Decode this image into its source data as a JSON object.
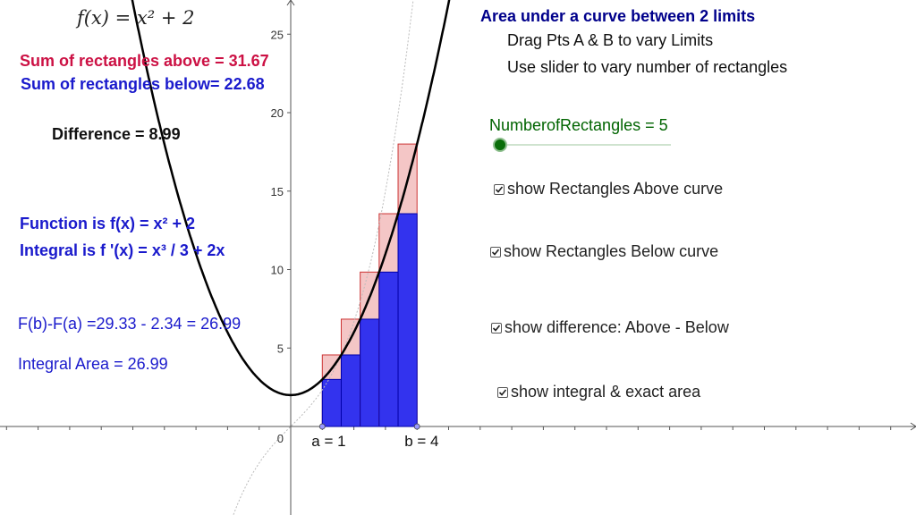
{
  "function_label": "f(x) = x² + 2",
  "colors": {
    "above_fill": "#f4c6c6",
    "above_stroke": "#cc3333",
    "below_fill": "#3333ee",
    "below_stroke": "#0000aa",
    "slider": "#006400",
    "title": "#00008b"
  },
  "stats": {
    "sum_above": "Sum of rectangles above = 31.67",
    "sum_below": "Sum of rectangles below= 22.68",
    "difference": "Difference = 8.99",
    "function_text": "Function is f(x) = x² + 2",
    "integral_text": "Integral is f '(x) = x³ / 3 + 2x",
    "fb_fa": "F(b)-F(a) =29.33 - 2.34 = 26.99",
    "integral_area": "Integral Area = 26.99"
  },
  "instructions": {
    "title": "Area under a curve between 2 limits",
    "line1": "Drag Pts A & B to vary Limits",
    "line2": "Use slider to vary number of rectangles"
  },
  "slider": {
    "label": "NumberofRectangles = 5",
    "value": 5
  },
  "checkboxes": [
    {
      "label": "show Rectangles Above curve",
      "checked": true
    },
    {
      "label": "show Rectangles Below curve",
      "checked": true
    },
    {
      "label": "show difference: Above - Below",
      "checked": true
    },
    {
      "label": "show integral & exact area",
      "checked": true
    }
  ],
  "graph": {
    "y_ticks": [
      "5",
      "10",
      "15",
      "20",
      "25"
    ],
    "origin_label": "0",
    "point_a_label": "a = 1",
    "point_b_label": "b = 4"
  },
  "chart_data": {
    "type": "area",
    "function": "x^2 + 2",
    "a": 1,
    "b": 4,
    "n": 5,
    "x_edges": [
      1,
      1.6,
      2.2,
      2.8,
      3.4,
      4
    ],
    "upper_heights": [
      4.56,
      6.84,
      9.84,
      13.56,
      18.0
    ],
    "lower_heights": [
      3.0,
      4.56,
      6.84,
      9.84,
      13.56
    ],
    "ylim": [
      -5,
      27
    ],
    "y_ticks": [
      5,
      10,
      15,
      20,
      25
    ]
  }
}
